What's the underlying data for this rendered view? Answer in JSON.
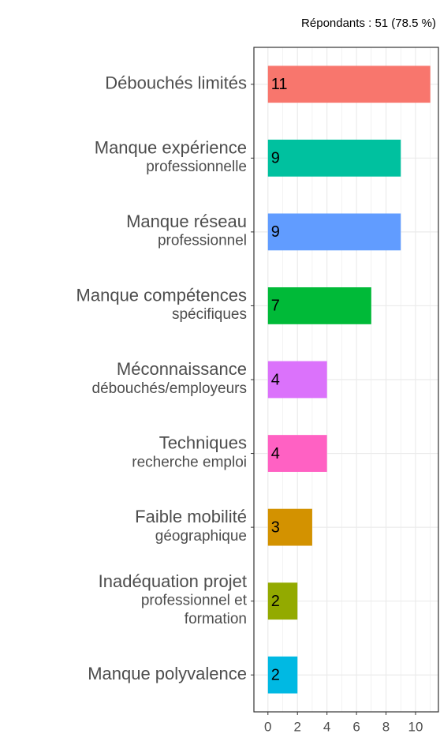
{
  "chart_data": {
    "type": "hbar",
    "subtitle": "Répondants : 51 (78.5 %)",
    "categories": [
      [
        "Débouchés limités"
      ],
      [
        "Manque expérience",
        "professionnelle"
      ],
      [
        "Manque réseau",
        "professionnel"
      ],
      [
        "Manque compétences",
        "spécifiques"
      ],
      [
        "Méconnaissance",
        "débouchés/employeurs"
      ],
      [
        "Techniques",
        "recherche emploi"
      ],
      [
        "Faible mobilité",
        "géographique"
      ],
      [
        "Inadéquation projet",
        "professionnel et",
        "formation"
      ],
      [
        "Manque polyvalence"
      ]
    ],
    "values": [
      11,
      9,
      9,
      7,
      4,
      4,
      3,
      2,
      2
    ],
    "colors": [
      "#F8766D",
      "#00C19F",
      "#619CFF",
      "#00BA38",
      "#DB72FB",
      "#FF61C3",
      "#D39200",
      "#93AA00",
      "#00B9E3"
    ],
    "xlim": [
      -0.95,
      11.55
    ],
    "xticks": [
      0,
      2,
      4,
      6,
      8,
      10
    ],
    "xminorticks": [
      1,
      3,
      5,
      7,
      9,
      11
    ],
    "grid": true
  }
}
